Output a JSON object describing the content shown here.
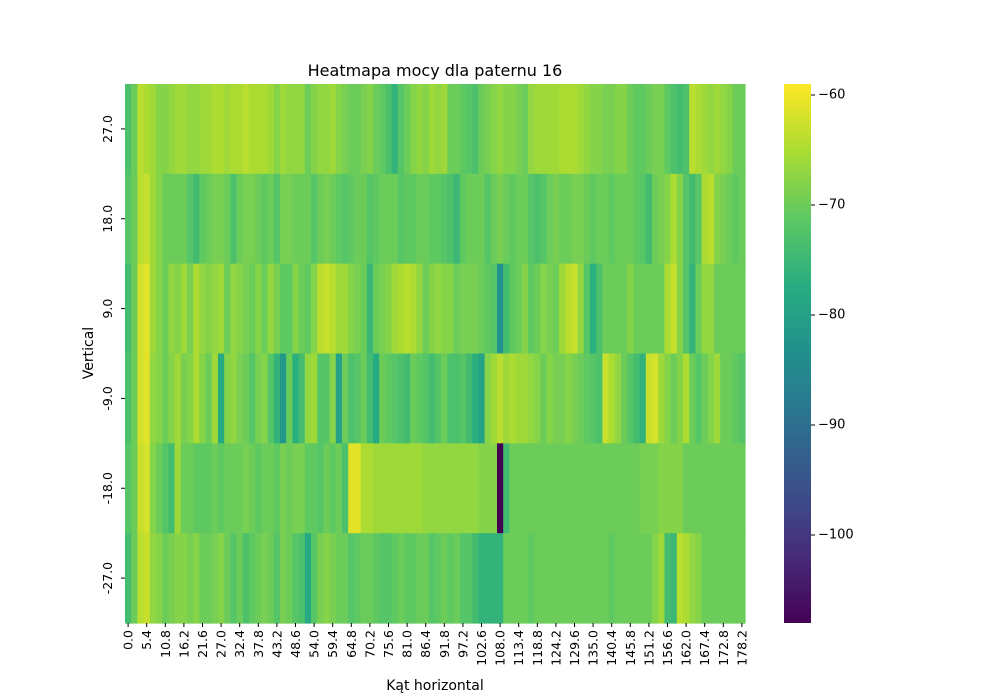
{
  "chart_data": {
    "type": "heatmap",
    "title": "Heatmapa mocy dla paternu 16",
    "xlabel": "Kąt horizontal",
    "ylabel": "Vertical",
    "x_ticks": [
      "0.0",
      "5.4",
      "10.8",
      "16.2",
      "21.6",
      "27.0",
      "32.4",
      "37.8",
      "43.2",
      "48.6",
      "54.0",
      "59.4",
      "64.8",
      "70.2",
      "75.6",
      "81.0",
      "86.4",
      "91.8",
      "97.2",
      "102.6",
      "108.0",
      "113.4",
      "118.8",
      "124.2",
      "129.6",
      "135.0",
      "140.4",
      "145.8",
      "151.2",
      "156.6",
      "162.0",
      "167.4",
      "172.8",
      "178.2"
    ],
    "y_ticks": [
      "27.0",
      "18.0",
      "9.0",
      "-9.0",
      "-18.0",
      "-27.0"
    ],
    "x_step": 1.8,
    "colormap": "viridis",
    "colorbar": {
      "min": -108,
      "max": -59,
      "ticks": [
        -60,
        -70,
        -80,
        -90,
        -100
      ]
    },
    "values": [
      [
        -73,
        -70,
        -64,
        -65,
        -66,
        -68,
        -68,
        -67,
        -66,
        -66,
        -67,
        -67,
        -66,
        -66,
        -65,
        -65,
        -66,
        -65,
        -65,
        -64,
        -65,
        -65,
        -65,
        -66,
        -68,
        -66,
        -67,
        -67,
        -67,
        -70,
        -68,
        -67,
        -67,
        -66,
        -68,
        -69,
        -70,
        -70,
        -69,
        -68,
        -70,
        -71,
        -73,
        -76,
        -72,
        -70,
        -68,
        -67,
        -68,
        -66,
        -67,
        -66,
        -70,
        -70,
        -71,
        -72,
        -73,
        -70,
        -69,
        -68,
        -67,
        -68,
        -68,
        -69,
        -70,
        -67,
        -66,
        -66,
        -66,
        -66,
        -65,
        -65,
        -65,
        -66,
        -67,
        -68,
        -68,
        -69,
        -69,
        -68,
        -68,
        -70,
        -71,
        -71,
        -70,
        -69,
        -69,
        -71,
        -73,
        -74,
        -73,
        -64,
        -65,
        -66,
        -67,
        -66,
        -67,
        -68,
        -70,
        -70
      ],
      [
        -72,
        -70,
        -64,
        -63,
        -66,
        -68,
        -70,
        -70,
        -70,
        -70,
        -72,
        -74,
        -71,
        -70,
        -69,
        -69,
        -70,
        -73,
        -70,
        -69,
        -69,
        -70,
        -71,
        -70,
        -72,
        -69,
        -69,
        -70,
        -70,
        -70,
        -72,
        -70,
        -69,
        -70,
        -71,
        -72,
        -71,
        -70,
        -70,
        -72,
        -71,
        -70,
        -70,
        -70,
        -72,
        -71,
        -71,
        -70,
        -70,
        -71,
        -71,
        -72,
        -73,
        -75,
        -71,
        -70,
        -70,
        -70,
        -72,
        -70,
        -69,
        -70,
        -71,
        -70,
        -70,
        -72,
        -73,
        -72,
        -70,
        -69,
        -70,
        -70,
        -69,
        -69,
        -70,
        -71,
        -70,
        -70,
        -71,
        -70,
        -70,
        -70,
        -71,
        -72,
        -74,
        -70,
        -69,
        -68,
        -65,
        -68,
        -72,
        -74,
        -72,
        -65,
        -64,
        -68,
        -69,
        -70,
        -71,
        -70
      ],
      [
        -74,
        -70,
        -62,
        -61,
        -66,
        -68,
        -70,
        -67,
        -68,
        -66,
        -69,
        -65,
        -67,
        -68,
        -67,
        -66,
        -70,
        -67,
        -68,
        -69,
        -70,
        -68,
        -70,
        -67,
        -69,
        -71,
        -71,
        -68,
        -70,
        -71,
        -68,
        -64,
        -63,
        -64,
        -66,
        -66,
        -68,
        -69,
        -70,
        -75,
        -70,
        -69,
        -68,
        -66,
        -65,
        -64,
        -65,
        -67,
        -70,
        -68,
        -67,
        -68,
        -68,
        -70,
        -69,
        -69,
        -69,
        -70,
        -71,
        -72,
        -83,
        -74,
        -71,
        -70,
        -68,
        -71,
        -70,
        -68,
        -69,
        -70,
        -66,
        -64,
        -63,
        -67,
        -72,
        -77,
        -73,
        -70,
        -70,
        -70,
        -70,
        -68,
        -70,
        -70,
        -70,
        -70,
        -70,
        -65,
        -63,
        -68,
        -72,
        -76,
        -70,
        -67,
        -67,
        -70,
        -70,
        -70,
        -70,
        -70
      ],
      [
        -73,
        -70,
        -62,
        -61,
        -67,
        -68,
        -70,
        -68,
        -66,
        -69,
        -68,
        -65,
        -68,
        -70,
        -66,
        -78,
        -68,
        -67,
        -69,
        -70,
        -72,
        -69,
        -68,
        -72,
        -76,
        -82,
        -70,
        -77,
        -74,
        -67,
        -66,
        -72,
        -72,
        -68,
        -80,
        -70,
        -73,
        -72,
        -70,
        -74,
        -78,
        -70,
        -71,
        -72,
        -73,
        -74,
        -70,
        -71,
        -72,
        -74,
        -72,
        -70,
        -73,
        -73,
        -72,
        -74,
        -77,
        -80,
        -68,
        -66,
        -64,
        -66,
        -65,
        -66,
        -66,
        -67,
        -68,
        -70,
        -68,
        -69,
        -69,
        -68,
        -69,
        -70,
        -71,
        -72,
        -73,
        -63,
        -65,
        -67,
        -70,
        -72,
        -74,
        -76,
        -63,
        -62,
        -66,
        -68,
        -70,
        -68,
        -65,
        -70,
        -72,
        -70,
        -68,
        -66,
        -70,
        -70,
        -71,
        -72
      ],
      [
        -72,
        -70,
        -63,
        -62,
        -68,
        -70,
        -72,
        -74,
        -66,
        -70,
        -70,
        -71,
        -71,
        -71,
        -70,
        -71,
        -70,
        -70,
        -70,
        -69,
        -70,
        -71,
        -70,
        -70,
        -71,
        -69,
        -70,
        -69,
        -69,
        -71,
        -71,
        -72,
        -70,
        -71,
        -70,
        -73,
        -61,
        -61,
        -65,
        -65,
        -66,
        -66,
        -66,
        -66,
        -66,
        -66,
        -66,
        -66,
        -67,
        -67,
        -67,
        -67,
        -67,
        -67,
        -67,
        -67,
        -67,
        -68,
        -68,
        -68,
        -108,
        -74,
        -70,
        -70,
        -70,
        -70,
        -70,
        -70,
        -70,
        -70,
        -70,
        -70,
        -70,
        -70,
        -70,
        -70,
        -70,
        -70,
        -70,
        -70,
        -70,
        -70,
        -70,
        -69,
        -69,
        -69,
        -68,
        -68,
        -68,
        -68,
        -70,
        -70,
        -70,
        -70,
        -70,
        -70,
        -70,
        -70,
        -70,
        -70
      ],
      [
        -74,
        -70,
        -64,
        -63,
        -67,
        -68,
        -70,
        -69,
        -68,
        -68,
        -69,
        -68,
        -70,
        -70,
        -69,
        -68,
        -70,
        -72,
        -70,
        -73,
        -71,
        -70,
        -69,
        -70,
        -72,
        -69,
        -70,
        -72,
        -73,
        -78,
        -72,
        -69,
        -68,
        -69,
        -70,
        -70,
        -72,
        -71,
        -70,
        -70,
        -71,
        -72,
        -72,
        -71,
        -70,
        -71,
        -71,
        -70,
        -70,
        -72,
        -71,
        -70,
        -71,
        -70,
        -72,
        -72,
        -74,
        -76,
        -76,
        -76,
        -76,
        -70,
        -70,
        -70,
        -70,
        -71,
        -70,
        -70,
        -70,
        -70,
        -70,
        -70,
        -70,
        -70,
        -70,
        -70,
        -70,
        -70,
        -71,
        -70,
        -70,
        -70,
        -70,
        -70,
        -70,
        -68,
        -66,
        -74,
        -75,
        -64,
        -65,
        -67,
        -68,
        -70,
        -70,
        -70,
        -70,
        -70,
        -70,
        -70
      ]
    ]
  }
}
